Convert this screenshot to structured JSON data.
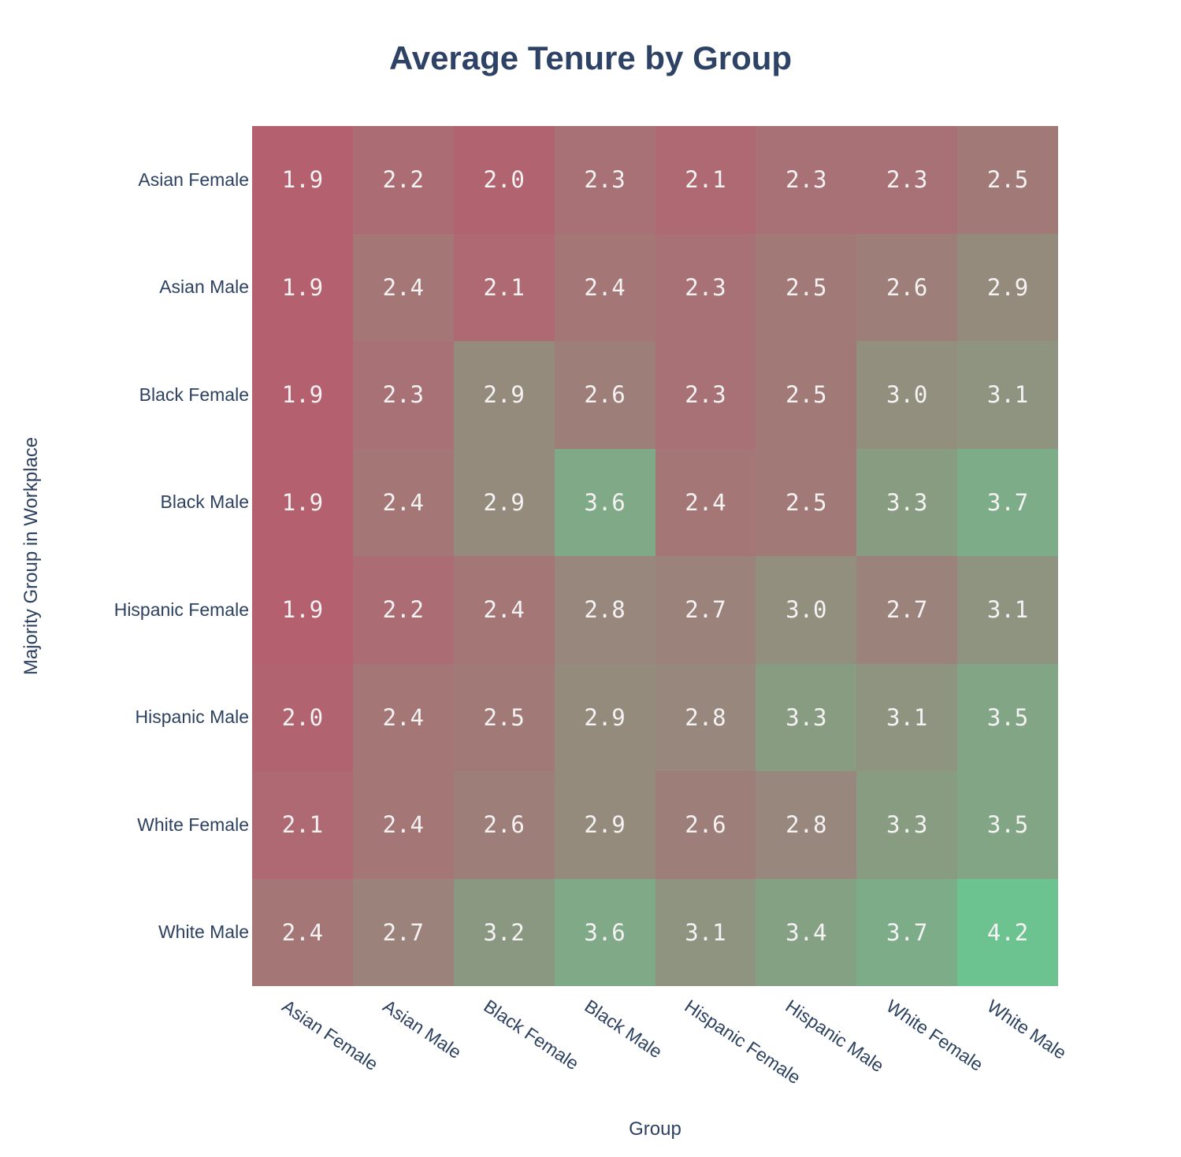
{
  "title": "Average Tenure by Group",
  "chart_data": {
    "type": "heatmap",
    "title": "Average Tenure by Group",
    "xlabel": "Group",
    "ylabel": "Majority Group in Workplace",
    "x_categories": [
      "Asian Female",
      "Asian Male",
      "Black Female",
      "Black Male",
      "Hispanic Female",
      "Hispanic Male",
      "White Female",
      "White Male"
    ],
    "y_categories": [
      "Asian Female",
      "Asian Male",
      "Black Female",
      "Black Male",
      "Hispanic Female",
      "Hispanic Male",
      "White Female",
      "White Male"
    ],
    "values": [
      [
        1.9,
        2.2,
        2.0,
        2.3,
        2.1,
        2.3,
        2.3,
        2.5
      ],
      [
        1.9,
        2.4,
        2.1,
        2.4,
        2.3,
        2.5,
        2.6,
        2.9
      ],
      [
        1.9,
        2.3,
        2.9,
        2.6,
        2.3,
        2.5,
        3.0,
        3.1
      ],
      [
        1.9,
        2.4,
        2.9,
        3.6,
        2.4,
        2.5,
        3.3,
        3.7
      ],
      [
        1.9,
        2.2,
        2.4,
        2.8,
        2.7,
        3.0,
        2.7,
        3.1
      ],
      [
        2.0,
        2.4,
        2.5,
        2.9,
        2.8,
        3.3,
        3.1,
        3.5
      ],
      [
        2.1,
        2.4,
        2.6,
        2.9,
        2.6,
        2.8,
        3.3,
        3.5
      ],
      [
        2.4,
        2.7,
        3.2,
        3.6,
        3.1,
        3.4,
        3.7,
        4.2
      ]
    ],
    "value_decimals": 1,
    "zmin": 1.9,
    "zmax": 4.2,
    "colorscale": {
      "low": "#b4606f",
      "high": "#6cc38f"
    },
    "cell_text_color": "#f5f2f3",
    "axis_text_color": "#2d4160",
    "grid": false,
    "legend_position": "none",
    "x_tick_angle_deg": 34
  }
}
